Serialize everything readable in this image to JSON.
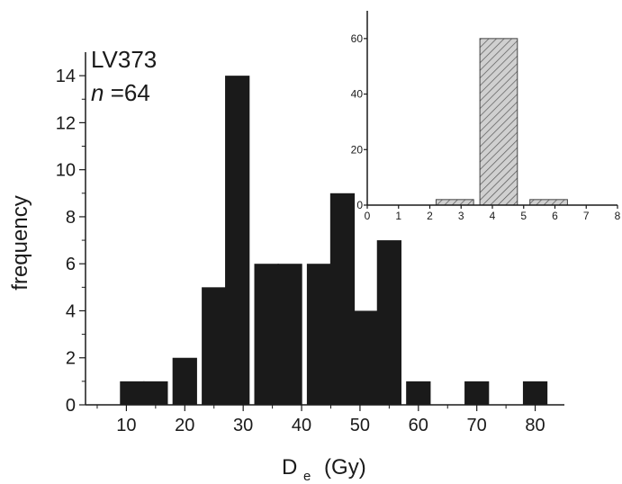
{
  "chart_data": [
    {
      "type": "bar",
      "xlabel_main": "D",
      "xlabel_sub": "e",
      "xlabel_unit": "(Gy)",
      "ylabel": "frequency",
      "xlim": [
        3,
        85
      ],
      "ylim": [
        0,
        15
      ],
      "xticks": [
        10,
        20,
        30,
        40,
        50,
        60,
        70,
        80
      ],
      "yticks": [
        0,
        2,
        4,
        6,
        8,
        10,
        12,
        14
      ],
      "bar_width": 4.2,
      "bar_color": "#1a1a1a",
      "annotations": {
        "sample": "LV373",
        "n_label": "n",
        "n_value": "=64"
      },
      "x": [
        11,
        15,
        20,
        25,
        29,
        34,
        38,
        43,
        47,
        51,
        55,
        60,
        70,
        80
      ],
      "values": [
        1,
        1,
        2,
        5,
        14,
        6,
        6,
        6,
        9,
        4,
        7,
        1,
        1,
        1
      ]
    },
    {
      "type": "bar",
      "xlim": [
        0,
        8
      ],
      "ylim": [
        0,
        70
      ],
      "xticks": [
        0,
        1,
        2,
        3,
        4,
        5,
        6,
        7,
        8
      ],
      "yticks": [
        0,
        20,
        40,
        60
      ],
      "bar_width": 1.2,
      "bar_fill": "#d0d0d0",
      "bar_hatch": "diagonal",
      "x": [
        2.8,
        4.2,
        5.8
      ],
      "values": [
        2,
        60,
        2
      ]
    }
  ]
}
